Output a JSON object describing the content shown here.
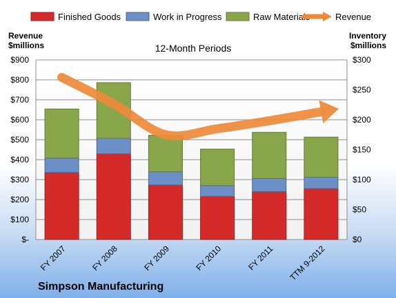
{
  "chart_data": {
    "type": "bar",
    "stacked": true,
    "subtitle": "12-Month Periods",
    "caption": "Simpson Manufacturing",
    "categories": [
      "FY 2007",
      "FY 2008",
      "FY 2009",
      "FY 2010",
      "FY 2011",
      "TTM 9-2012"
    ],
    "left_axis": {
      "title_lines": [
        "Revenue",
        "$millions"
      ],
      "min": 0,
      "max": 900,
      "step": 100,
      "tick_labels": [
        "$-",
        "$100",
        "$200",
        "$300",
        "$400",
        "$500",
        "$600",
        "$700",
        "$800",
        "$900"
      ]
    },
    "right_axis": {
      "title_lines": [
        "Inventory",
        "$millions"
      ],
      "min": 0,
      "max": 300,
      "step": 50,
      "tick_labels": [
        "$0",
        "$50",
        "$100",
        "$150",
        "$200",
        "$250",
        "$300"
      ]
    },
    "series": [
      {
        "name": "Finished Goods",
        "axis": "right",
        "color": "#d42a2a",
        "values": [
          112,
          143,
          91,
          72,
          80,
          85
        ]
      },
      {
        "name": "Work in Progress",
        "axis": "right",
        "color": "#6d8fc8",
        "values": [
          24,
          26,
          22,
          18,
          22,
          19
        ]
      },
      {
        "name": "Raw Materials",
        "axis": "right",
        "color": "#8aa64a",
        "values": [
          82,
          93,
          61,
          61,
          77,
          67
        ]
      },
      {
        "name": "Revenue",
        "axis": "left",
        "type": "line",
        "color": "#ee8a3a",
        "values": [
          812,
          680,
          525,
          555,
          595,
          640
        ]
      }
    ],
    "grid": true,
    "legend_position": "top"
  }
}
